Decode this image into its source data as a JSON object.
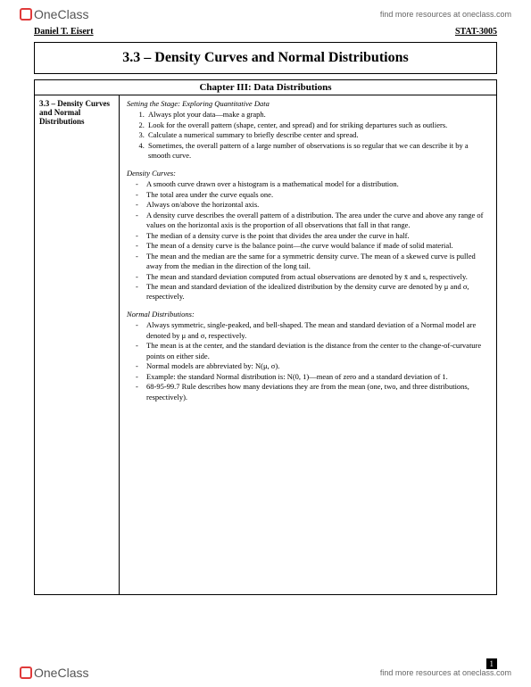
{
  "brand": {
    "one": "One",
    "class": "Class"
  },
  "resources_link": "find more resources at oneclass.com",
  "author": "Daniel T. Eisert",
  "course": "STAT-3005",
  "page_title": "3.3 – Density Curves and Normal Distributions",
  "chapter": "Chapter III: Data Distributions",
  "left_heading": "3.3 – Density Curves and Normal Distributions",
  "stage": {
    "heading": "Setting the Stage: Exploring Quantitative Data",
    "items": [
      "Always plot your data—make a graph.",
      "Look for the overall pattern (shape, center, and spread) and for striking departures such as outliers.",
      "Calculate a numerical summary to briefly describe center and spread.",
      "Sometimes, the overall pattern of a large number of observations is so regular that we can describe it by a smooth curve."
    ]
  },
  "density": {
    "heading": "Density Curves:",
    "items": [
      "A smooth curve drawn over a histogram is a mathematical model for a distribution.",
      "The total area under the curve equals one.",
      "Always on/above the horizontal axis.",
      "A density curve describes the overall pattern of a distribution. The area under the curve and above any range of values on the horizontal axis is the proportion of all observations that fall in that range.",
      "The median of a density curve is the point that divides the area under the curve in half.",
      "The mean of a density curve is the balance point—the curve would balance if made of solid material.",
      "The mean and the median are the same for a symmetric density curve. The mean of a skewed curve is pulled away from the median in the direction of the long tail.",
      "The mean and standard deviation computed from actual observations are denoted by x̄ and s, respectively.",
      "The mean and standard deviation of the idealized distribution by the density curve are denoted by μ and σ, respectively."
    ]
  },
  "normal": {
    "heading": "Normal Distributions:",
    "items": [
      "Always symmetric, single-peaked, and bell-shaped. The mean and standard deviation of a Normal model are denoted by μ and σ, respectively.",
      "The mean is at the center, and the standard deviation is the distance from the center to the change-of-curvature points on either side.",
      "Normal models are abbreviated by: N(μ, σ).",
      "Example: the standard Normal distribution is: N(0, 1)—mean of zero and a standard deviation of 1.",
      "68-95-99.7 Rule describes how many deviations they are from the mean (one, two, and three distributions, respectively)."
    ]
  },
  "page_number": "1",
  "colors": {
    "text": "#000000",
    "background": "#ffffff",
    "logo_border": "#e03a3a",
    "muted": "#666666"
  },
  "fonts": {
    "body_family": "Georgia, serif",
    "body_size_pt": 8.5,
    "title_size_pt": 16,
    "chapter_size_pt": 11
  }
}
